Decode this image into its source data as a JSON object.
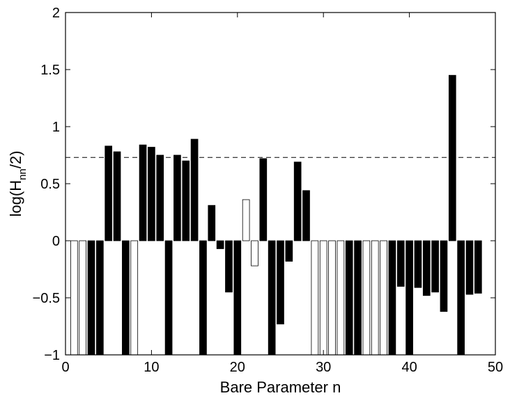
{
  "chart_data": {
    "type": "bar",
    "title": "",
    "xlabel": "Bare Parameter n",
    "ylabel": "log(H",
    "ylabel_sub": "nn",
    "ylabel_suffix": "/2)",
    "xlim": [
      0,
      50
    ],
    "ylim": [
      -1,
      2
    ],
    "xticks": [
      {
        "value": 0,
        "label": "0"
      },
      {
        "value": 10,
        "label": "10"
      },
      {
        "value": 20,
        "label": "20"
      },
      {
        "value": 30,
        "label": "30"
      },
      {
        "value": 40,
        "label": "40"
      },
      {
        "value": 50,
        "label": "50"
      }
    ],
    "yticks": [
      {
        "value": -1,
        "label": "−1"
      },
      {
        "value": -0.5,
        "label": "−0.5"
      },
      {
        "value": 0,
        "label": "0"
      },
      {
        "value": 0.5,
        "label": "0.5"
      },
      {
        "value": 1,
        "label": "1"
      },
      {
        "value": 1.5,
        "label": "1.5"
      },
      {
        "value": 2,
        "label": "2"
      }
    ],
    "reference_line": {
      "y": 0.73,
      "style": "dashed"
    },
    "grid": false,
    "legend": "none",
    "colors": {
      "filled": "#000000",
      "hollow": "#ffffff",
      "edge": "#000000"
    },
    "bars": [
      {
        "n": 1,
        "value": -1.0,
        "filled": false
      },
      {
        "n": 2,
        "value": -1.0,
        "filled": false
      },
      {
        "n": 3,
        "value": -1.0,
        "filled": true
      },
      {
        "n": 4,
        "value": -1.0,
        "filled": true
      },
      {
        "n": 5,
        "value": 0.83,
        "filled": true
      },
      {
        "n": 6,
        "value": 0.78,
        "filled": true
      },
      {
        "n": 7,
        "value": -1.0,
        "filled": true
      },
      {
        "n": 8,
        "value": -1.0,
        "filled": false
      },
      {
        "n": 9,
        "value": 0.84,
        "filled": true
      },
      {
        "n": 10,
        "value": 0.82,
        "filled": true
      },
      {
        "n": 11,
        "value": 0.75,
        "filled": true
      },
      {
        "n": 12,
        "value": -1.0,
        "filled": true
      },
      {
        "n": 13,
        "value": 0.75,
        "filled": true
      },
      {
        "n": 14,
        "value": 0.7,
        "filled": true
      },
      {
        "n": 15,
        "value": 0.89,
        "filled": true
      },
      {
        "n": 16,
        "value": -1.0,
        "filled": true
      },
      {
        "n": 17,
        "value": 0.31,
        "filled": true
      },
      {
        "n": 18,
        "value": -0.07,
        "filled": true
      },
      {
        "n": 19,
        "value": -0.45,
        "filled": true
      },
      {
        "n": 20,
        "value": -1.0,
        "filled": true
      },
      {
        "n": 21,
        "value": 0.36,
        "filled": false
      },
      {
        "n": 22,
        "value": -0.22,
        "filled": false
      },
      {
        "n": 23,
        "value": 0.72,
        "filled": true
      },
      {
        "n": 24,
        "value": -1.0,
        "filled": true
      },
      {
        "n": 25,
        "value": -0.73,
        "filled": true
      },
      {
        "n": 26,
        "value": -0.18,
        "filled": true
      },
      {
        "n": 27,
        "value": 0.69,
        "filled": true
      },
      {
        "n": 28,
        "value": 0.44,
        "filled": true
      },
      {
        "n": 29,
        "value": -1.0,
        "filled": false
      },
      {
        "n": 30,
        "value": -1.0,
        "filled": false
      },
      {
        "n": 31,
        "value": -1.0,
        "filled": false
      },
      {
        "n": 32,
        "value": -1.0,
        "filled": false
      },
      {
        "n": 33,
        "value": -1.0,
        "filled": true
      },
      {
        "n": 34,
        "value": -1.0,
        "filled": true
      },
      {
        "n": 35,
        "value": -1.0,
        "filled": false
      },
      {
        "n": 36,
        "value": -1.0,
        "filled": false
      },
      {
        "n": 37,
        "value": -1.0,
        "filled": false
      },
      {
        "n": 38,
        "value": -1.0,
        "filled": true
      },
      {
        "n": 39,
        "value": -0.4,
        "filled": true
      },
      {
        "n": 40,
        "value": -1.0,
        "filled": true
      },
      {
        "n": 41,
        "value": -0.41,
        "filled": true
      },
      {
        "n": 42,
        "value": -0.48,
        "filled": true
      },
      {
        "n": 43,
        "value": -0.45,
        "filled": true
      },
      {
        "n": 44,
        "value": -0.62,
        "filled": true
      },
      {
        "n": 45,
        "value": 1.45,
        "filled": true
      },
      {
        "n": 46,
        "value": -1.0,
        "filled": true
      },
      {
        "n": 47,
        "value": -0.47,
        "filled": true
      },
      {
        "n": 48,
        "value": -0.46,
        "filled": true
      }
    ]
  }
}
